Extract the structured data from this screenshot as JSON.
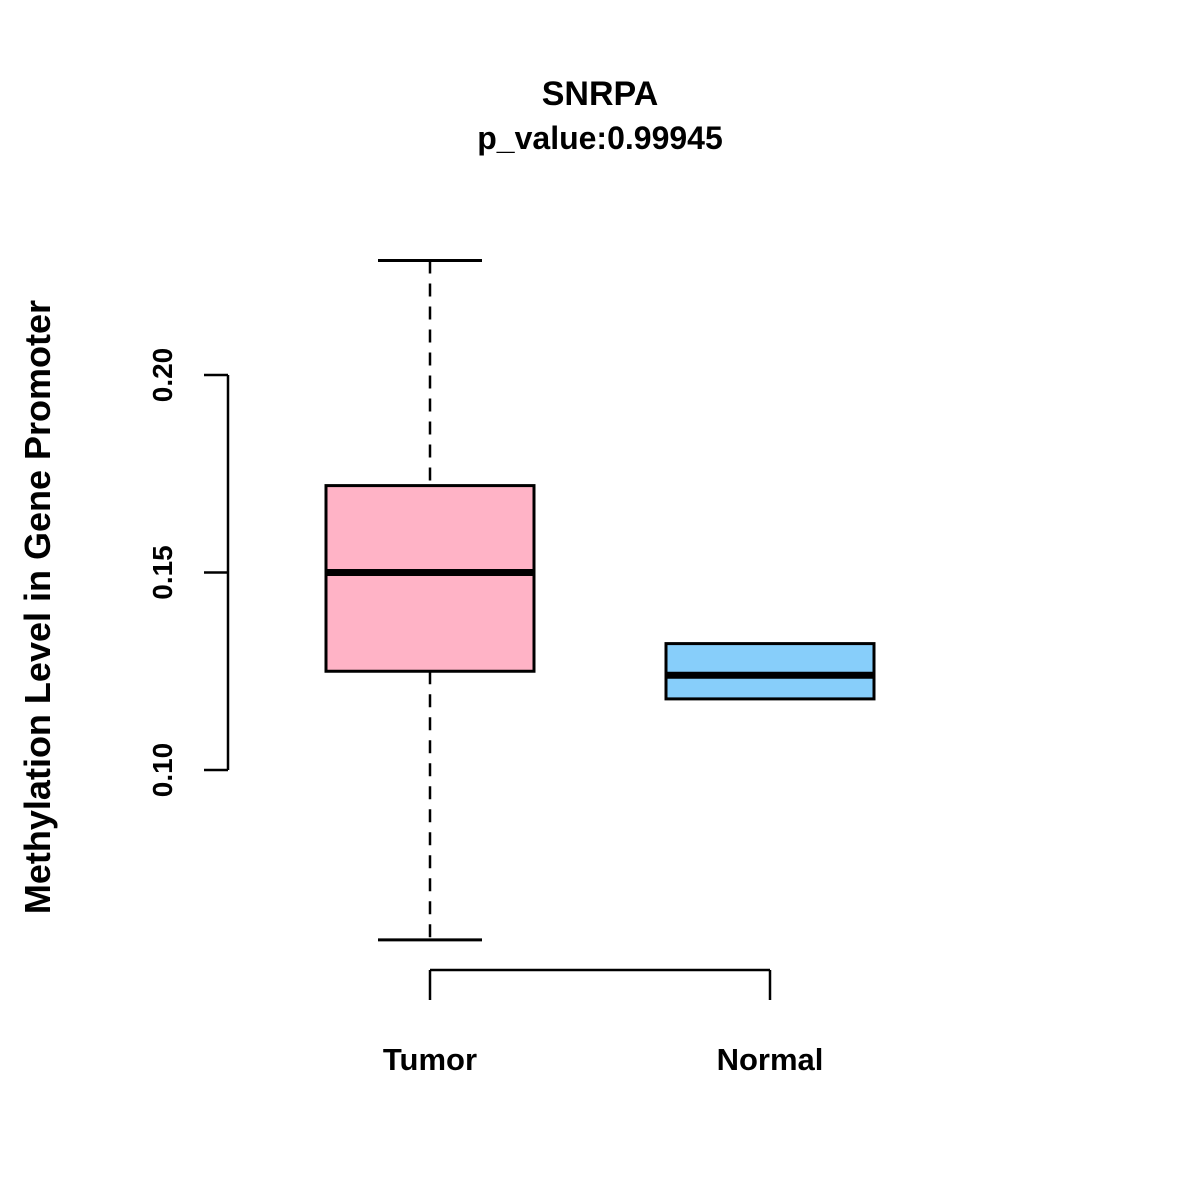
{
  "chart_data": {
    "type": "boxplot",
    "title": "SNRPA",
    "subtitle": "p_value:0.99945",
    "ylabel": "Methylation Level in Gene Promoter",
    "xlabel": "",
    "categories": [
      "Tumor",
      "Normal"
    ],
    "yticks": [
      "0.10",
      "0.15",
      "0.20"
    ],
    "ylim": [
      0.05,
      0.235
    ],
    "grid": false,
    "legend": "none",
    "series": [
      {
        "name": "Tumor",
        "color": "#FFB3C6",
        "whisker_low": 0.057,
        "q1": 0.125,
        "median": 0.15,
        "q3": 0.172,
        "whisker_high": 0.229
      },
      {
        "name": "Normal",
        "color": "#87CEFA",
        "whisker_low": 0.118,
        "q1": 0.118,
        "median": 0.124,
        "q3": 0.132,
        "whisker_high": 0.132
      }
    ],
    "stroke_color": "#000000"
  }
}
